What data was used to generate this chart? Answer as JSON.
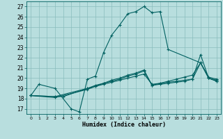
{
  "title": "",
  "xlabel": "Humidex (Indice chaleur)",
  "xlim": [
    -0.5,
    23.5
  ],
  "ylim": [
    16.5,
    27.5
  ],
  "xticks": [
    0,
    1,
    2,
    3,
    4,
    5,
    6,
    7,
    8,
    9,
    10,
    11,
    12,
    13,
    14,
    15,
    16,
    17,
    18,
    19,
    20,
    21,
    22,
    23
  ],
  "yticks": [
    17,
    18,
    19,
    20,
    21,
    22,
    23,
    24,
    25,
    26,
    27
  ],
  "bg_color": "#b8dede",
  "line_color": "#006060",
  "grid_color": "#8abcbc",
  "lines": [
    {
      "x": [
        0,
        1,
        3,
        5,
        6,
        7,
        8,
        9,
        10,
        11,
        12,
        13,
        14,
        15,
        16,
        17,
        21,
        22,
        23
      ],
      "y": [
        18.3,
        19.4,
        19.0,
        17.0,
        16.7,
        19.9,
        20.2,
        22.5,
        24.2,
        25.2,
        26.3,
        26.5,
        27.0,
        26.4,
        26.5,
        22.8,
        21.5,
        20.0,
        19.7
      ]
    },
    {
      "x": [
        0,
        3,
        4,
        7,
        8,
        9,
        10,
        11,
        12,
        13,
        14,
        15,
        16,
        17,
        18,
        19,
        20,
        21,
        22,
        23
      ],
      "y": [
        18.3,
        18.2,
        18.2,
        19.0,
        19.2,
        19.4,
        19.6,
        19.8,
        20.0,
        20.2,
        20.4,
        19.4,
        19.5,
        19.6,
        19.7,
        19.8,
        19.9,
        21.5,
        20.0,
        19.7
      ]
    },
    {
      "x": [
        0,
        3,
        7,
        8,
        9,
        10,
        11,
        12,
        13,
        14,
        15,
        16,
        17,
        18,
        19,
        20,
        21,
        22,
        23
      ],
      "y": [
        18.3,
        18.2,
        19.0,
        19.3,
        19.5,
        19.8,
        20.0,
        20.3,
        20.5,
        20.8,
        19.3,
        19.5,
        19.7,
        19.9,
        20.1,
        20.3,
        21.5,
        20.1,
        19.9
      ]
    },
    {
      "x": [
        0,
        3,
        7,
        8,
        9,
        10,
        11,
        12,
        13,
        14,
        15,
        16,
        17,
        18,
        19,
        20,
        21,
        22,
        23
      ],
      "y": [
        18.3,
        18.1,
        18.9,
        19.2,
        19.5,
        19.7,
        19.9,
        20.2,
        20.4,
        20.7,
        19.3,
        19.4,
        19.5,
        19.6,
        19.7,
        19.9,
        22.3,
        20.0,
        19.8
      ]
    }
  ]
}
